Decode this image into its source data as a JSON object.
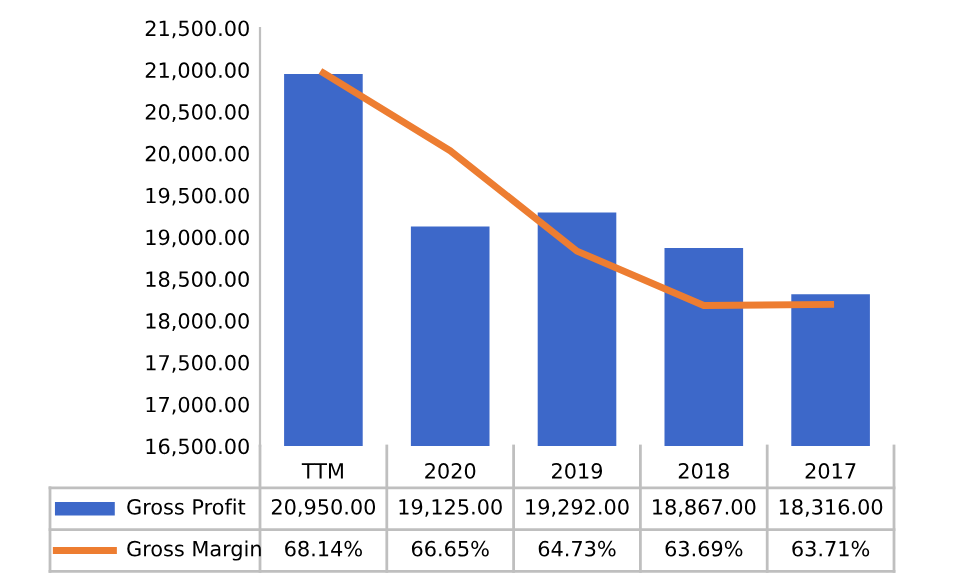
{
  "chart_data": {
    "type": "bar",
    "categories": [
      "TTM",
      "2020",
      "2019",
      "2018",
      "2017"
    ],
    "series": [
      {
        "name": "Gross Profit",
        "color": "#3d68c9",
        "values": [
          20950,
          19125,
          19292,
          18867,
          18316
        ],
        "value_labels": [
          "20,950.00",
          "19,125.00",
          "19,292.00",
          "18,867.00",
          "18,316.00"
        ]
      },
      {
        "name": "Gross Margin",
        "type": "line",
        "axis": "y2",
        "color": "#ed7d31",
        "values": [
          68.14,
          66.65,
          64.73,
          63.69,
          63.71
        ],
        "value_labels": [
          "68.14%",
          "66.65%",
          "64.73%",
          "63.69%",
          "63.71%"
        ]
      }
    ],
    "ylim": [
      16500,
      21500
    ],
    "yticks": [
      {
        "value": 16500,
        "label": "16,500.00"
      },
      {
        "value": 17000,
        "label": "17,000.00"
      },
      {
        "value": 17500,
        "label": "17,500.00"
      },
      {
        "value": 18000,
        "label": "18,000.00"
      },
      {
        "value": 18500,
        "label": "18,500.00"
      },
      {
        "value": 19000,
        "label": "19,000.00"
      },
      {
        "value": 19500,
        "label": "19,500.00"
      },
      {
        "value": 20000,
        "label": "20,000.00"
      },
      {
        "value": 20500,
        "label": "20,500.00"
      },
      {
        "value": 21000,
        "label": "21,000.00"
      },
      {
        "value": 21500,
        "label": "21,500.00"
      }
    ],
    "y2lim": [
      61,
      69
    ],
    "grid": false,
    "legend": "bottom left",
    "marker": "none",
    "line_style": "solid"
  }
}
